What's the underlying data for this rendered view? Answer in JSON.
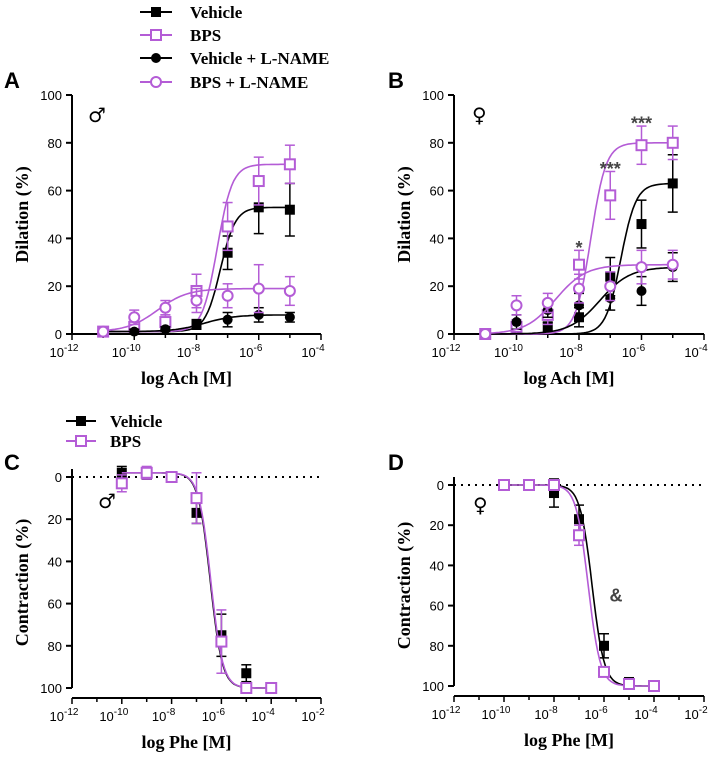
{
  "colors": {
    "vehicle": "#000000",
    "bps": "#b45cd6",
    "text": "#000000",
    "annotation": "#444444"
  },
  "legend_top": [
    {
      "label": "Vehicle",
      "series": "vehicle",
      "marker": "square-filled"
    },
    {
      "label": "BPS",
      "series": "bps",
      "marker": "square-open"
    },
    {
      "label": "Vehicle + L-NAME",
      "series": "vehicle",
      "marker": "circle-filled"
    },
    {
      "label": "BPS + L-NAME",
      "series": "bps",
      "marker": "circle-open"
    }
  ],
  "legend_mid": [
    {
      "label": "Vehicle",
      "series": "vehicle",
      "marker": "square-filled"
    },
    {
      "label": "BPS",
      "series": "bps",
      "marker": "square-open"
    }
  ],
  "chart_data": [
    {
      "panel": "A",
      "type": "line",
      "sex_symbol": "♂",
      "ylabel": "Dilation (%)",
      "xlabel": "log Ach [M]",
      "xscale": "log",
      "xlim_exp": [
        -12,
        -4
      ],
      "ylim": [
        0,
        100
      ],
      "xticks": [
        {
          "base": "10",
          "exp": "-12"
        },
        {
          "base": "10",
          "exp": "-10"
        },
        {
          "base": "10",
          "exp": "-8"
        },
        {
          "base": "10",
          "exp": "-6"
        },
        {
          "base": "10",
          "exp": "-4"
        }
      ],
      "yticks": [
        "0",
        "20",
        "40",
        "60",
        "80",
        "100"
      ],
      "yaxis_direction": "up",
      "series": [
        {
          "name": "Vehicle",
          "color": "vehicle",
          "marker": "square-filled",
          "x_exp": [
            -11,
            -10,
            -9,
            -8,
            -7,
            -6,
            -5
          ],
          "values": [
            1,
            2,
            3,
            4,
            34,
            53,
            52
          ],
          "err": [
            1,
            1,
            1,
            2,
            7,
            11,
            11
          ]
        },
        {
          "name": "BPS",
          "color": "bps",
          "marker": "square-open",
          "x_exp": [
            -11,
            -10,
            -9,
            -8,
            -7,
            -6,
            -5
          ],
          "values": [
            1,
            3,
            5,
            18,
            45,
            64,
            71
          ],
          "err": [
            1,
            2,
            3,
            7,
            10,
            10,
            8
          ]
        },
        {
          "name": "Vehicle + L-NAME",
          "color": "vehicle",
          "marker": "circle-filled",
          "x_exp": [
            -11,
            -10,
            -9,
            -8,
            -7,
            -6,
            -5
          ],
          "values": [
            1,
            1,
            2,
            4,
            6,
            8,
            7
          ],
          "err": [
            1,
            1,
            1,
            2,
            3,
            3,
            2
          ]
        },
        {
          "name": "BPS + L-NAME",
          "color": "bps",
          "marker": "circle-open",
          "x_exp": [
            -11,
            -10,
            -9,
            -8,
            -7,
            -6,
            -5
          ],
          "values": [
            1,
            7,
            11,
            14,
            16,
            19,
            18
          ],
          "err": [
            1,
            3,
            3,
            5,
            5,
            10,
            6
          ]
        }
      ],
      "annotations": []
    },
    {
      "panel": "B",
      "type": "line",
      "sex_symbol": "♀",
      "ylabel": "Dilation (%)",
      "xlabel": "log Ach [M]",
      "xscale": "log",
      "xlim_exp": [
        -12,
        -4
      ],
      "ylim": [
        0,
        100
      ],
      "xticks": [
        {
          "base": "10",
          "exp": "-12"
        },
        {
          "base": "10",
          "exp": "-10"
        },
        {
          "base": "10",
          "exp": "-8"
        },
        {
          "base": "10",
          "exp": "-6"
        },
        {
          "base": "10",
          "exp": "-4"
        }
      ],
      "yticks": [
        "0",
        "20",
        "40",
        "60",
        "80",
        "100"
      ],
      "yaxis_direction": "up",
      "series": [
        {
          "name": "Vehicle",
          "color": "vehicle",
          "marker": "square-filled",
          "x_exp": [
            -11,
            -10,
            -9,
            -8,
            -7,
            -6,
            -5
          ],
          "values": [
            0,
            2,
            3,
            7,
            24,
            46,
            63
          ],
          "err": [
            1,
            2,
            2,
            4,
            8,
            10,
            12
          ]
        },
        {
          "name": "BPS",
          "color": "bps",
          "marker": "square-open",
          "x_exp": [
            -11,
            -10,
            -9,
            -8,
            -7,
            -6,
            -5
          ],
          "values": [
            0,
            3,
            8,
            29,
            58,
            79,
            80
          ],
          "err": [
            1,
            3,
            4,
            6,
            10,
            8,
            7
          ]
        },
        {
          "name": "Vehicle + L-NAME",
          "color": "vehicle",
          "marker": "circle-filled",
          "x_exp": [
            -11,
            -10,
            -9,
            -8,
            -7,
            -6,
            -5
          ],
          "values": [
            0,
            5,
            10,
            12,
            15,
            18,
            28
          ],
          "err": [
            1,
            3,
            3,
            5,
            5,
            6,
            6
          ]
        },
        {
          "name": "BPS + L-NAME",
          "color": "bps",
          "marker": "circle-open",
          "x_exp": [
            -11,
            -10,
            -9,
            -8,
            -7,
            -6,
            -5
          ],
          "values": [
            0,
            12,
            13,
            19,
            20,
            28,
            29
          ],
          "err": [
            1,
            4,
            4,
            6,
            6,
            7,
            6
          ]
        }
      ],
      "annotations": [
        {
          "text": "*",
          "x_exp": -8,
          "y": 36
        },
        {
          "text": "***",
          "x_exp": -7,
          "y": 69
        },
        {
          "text": "***",
          "x_exp": -6,
          "y": 88
        }
      ]
    },
    {
      "panel": "C",
      "type": "line",
      "sex_symbol": "♂",
      "ylabel": "Contraction  (%)",
      "xlabel": "log Phe [M]",
      "xscale": "log",
      "xlim_exp": [
        -12,
        -2
      ],
      "ylim": [
        0,
        100
      ],
      "xticks": [
        {
          "base": "10",
          "exp": "-12"
        },
        {
          "base": "10",
          "exp": "-10"
        },
        {
          "base": "10",
          "exp": "-8"
        },
        {
          "base": "10",
          "exp": "-6"
        },
        {
          "base": "10",
          "exp": "-4"
        },
        {
          "base": "10",
          "exp": "-2"
        }
      ],
      "yticks": [
        "0",
        "20",
        "40",
        "60",
        "80",
        "100"
      ],
      "yaxis_direction": "down",
      "series": [
        {
          "name": "Vehicle",
          "color": "vehicle",
          "marker": "square-filled",
          "x_exp": [
            -10,
            -9,
            -8,
            -7,
            -6,
            -5,
            -4
          ],
          "values": [
            -2,
            -1,
            0,
            17,
            75,
            93,
            100
          ],
          "err": [
            3,
            2,
            1,
            5,
            10,
            4,
            1
          ]
        },
        {
          "name": "BPS",
          "color": "bps",
          "marker": "square-open",
          "x_exp": [
            -10,
            -9,
            -8,
            -7,
            -6,
            -5,
            -4
          ],
          "values": [
            3,
            -2,
            0,
            10,
            78,
            100,
            100
          ],
          "err": [
            4,
            3,
            1,
            12,
            15,
            2,
            1
          ]
        }
      ],
      "annotations": []
    },
    {
      "panel": "D",
      "type": "line",
      "sex_symbol": "♀",
      "ylabel": "Contraction  (%)",
      "xlabel": "log Phe [M]",
      "xscale": "log",
      "xlim_exp": [
        -12,
        -2
      ],
      "ylim": [
        0,
        100
      ],
      "xticks": [
        {
          "base": "10",
          "exp": "-12"
        },
        {
          "base": "10",
          "exp": "-10"
        },
        {
          "base": "10",
          "exp": "-8"
        },
        {
          "base": "10",
          "exp": "-6"
        },
        {
          "base": "10",
          "exp": "-4"
        },
        {
          "base": "10",
          "exp": "-2"
        }
      ],
      "yticks": [
        "0",
        "20",
        "40",
        "60",
        "80",
        "100"
      ],
      "yaxis_direction": "down",
      "series": [
        {
          "name": "Vehicle",
          "color": "vehicle",
          "marker": "square-filled",
          "x_exp": [
            -10,
            -9,
            -8,
            -7,
            -6,
            -5,
            -4
          ],
          "values": [
            0,
            0,
            4,
            17,
            80,
            98,
            100
          ],
          "err": [
            1,
            1,
            7,
            7,
            6,
            2,
            1
          ]
        },
        {
          "name": "BPS",
          "color": "bps",
          "marker": "square-open",
          "x_exp": [
            -10,
            -9,
            -8,
            -7,
            -6,
            -5,
            -4
          ],
          "values": [
            0,
            0,
            0,
            25,
            93,
            99,
            100
          ],
          "err": [
            1,
            1,
            2,
            5,
            2,
            1,
            1
          ]
        }
      ],
      "annotations": [
        {
          "text": "&",
          "x_exp": -6,
          "y": 55
        }
      ]
    }
  ]
}
